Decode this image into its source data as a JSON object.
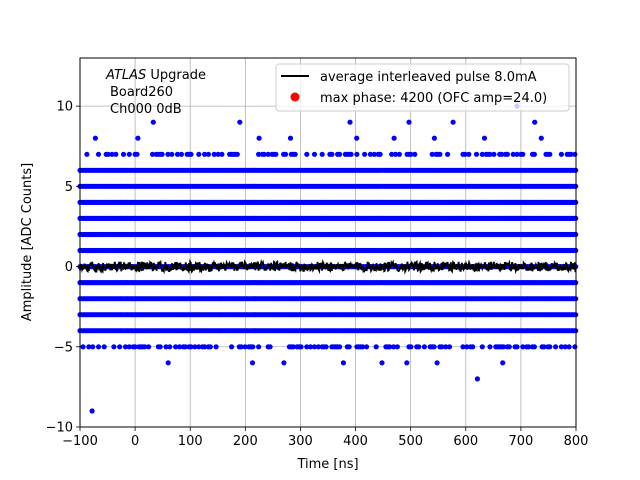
{
  "chart_data": {
    "type": "scatter",
    "xlabel": "Time [ns]",
    "ylabel": "Amplitude [ADC Counts]",
    "xlim": [
      -100,
      800
    ],
    "ylim": [
      -10,
      13
    ],
    "xticks": [
      -100,
      0,
      100,
      200,
      300,
      400,
      500,
      600,
      700,
      800
    ],
    "xtick_labels": [
      "−100",
      "0",
      "100",
      "200",
      "300",
      "400",
      "500",
      "600",
      "700",
      "800"
    ],
    "yticks": [
      -10,
      -5,
      0,
      5,
      10
    ],
    "ytick_labels": [
      "−10",
      "−5",
      "0",
      "5",
      "10"
    ],
    "grid": true,
    "legend_position": "top-right",
    "annotation": {
      "line1_italic": "ATLAS",
      "line1_rest": " Upgrade",
      "line2": "Board260",
      "line3": "Ch000 0dB"
    },
    "series": [
      {
        "name": "average interleaved pulse 8.0mA",
        "kind": "line",
        "color": "#000000",
        "y_mean": 0.0,
        "y_spread": 0.3
      },
      {
        "name": "max phase: 4200 (OFC amp=24.0)",
        "kind": "scatter",
        "color": "#0000ff",
        "legend_marker_color": "#ff0000",
        "dense_levels": [
          -4,
          -3,
          -2,
          -1,
          0,
          1,
          2,
          3,
          4,
          5,
          6
        ],
        "partial_levels": [
          -5,
          7
        ],
        "outliers": [
          {
            "x": -78,
            "y": -9
          },
          {
            "x": 60,
            "y": -6
          },
          {
            "x": 213,
            "y": -6
          },
          {
            "x": 270,
            "y": -6
          },
          {
            "x": 378,
            "y": -6
          },
          {
            "x": 448,
            "y": -6
          },
          {
            "x": 493,
            "y": -6
          },
          {
            "x": 548,
            "y": -6
          },
          {
            "x": 667,
            "y": -6
          },
          {
            "x": 621,
            "y": -7
          },
          {
            "x": -72,
            "y": 8
          },
          {
            "x": 5,
            "y": 8
          },
          {
            "x": 33,
            "y": 9
          },
          {
            "x": 190,
            "y": 9
          },
          {
            "x": 225,
            "y": 8
          },
          {
            "x": 282,
            "y": 8
          },
          {
            "x": 390,
            "y": 9
          },
          {
            "x": 402,
            "y": 8
          },
          {
            "x": 470,
            "y": 8
          },
          {
            "x": 497,
            "y": 9
          },
          {
            "x": 543,
            "y": 8
          },
          {
            "x": 577,
            "y": 9
          },
          {
            "x": 634,
            "y": 8
          },
          {
            "x": 693,
            "y": 10
          },
          {
            "x": 725,
            "y": 9
          },
          {
            "x": 737,
            "y": 8
          }
        ]
      }
    ]
  }
}
